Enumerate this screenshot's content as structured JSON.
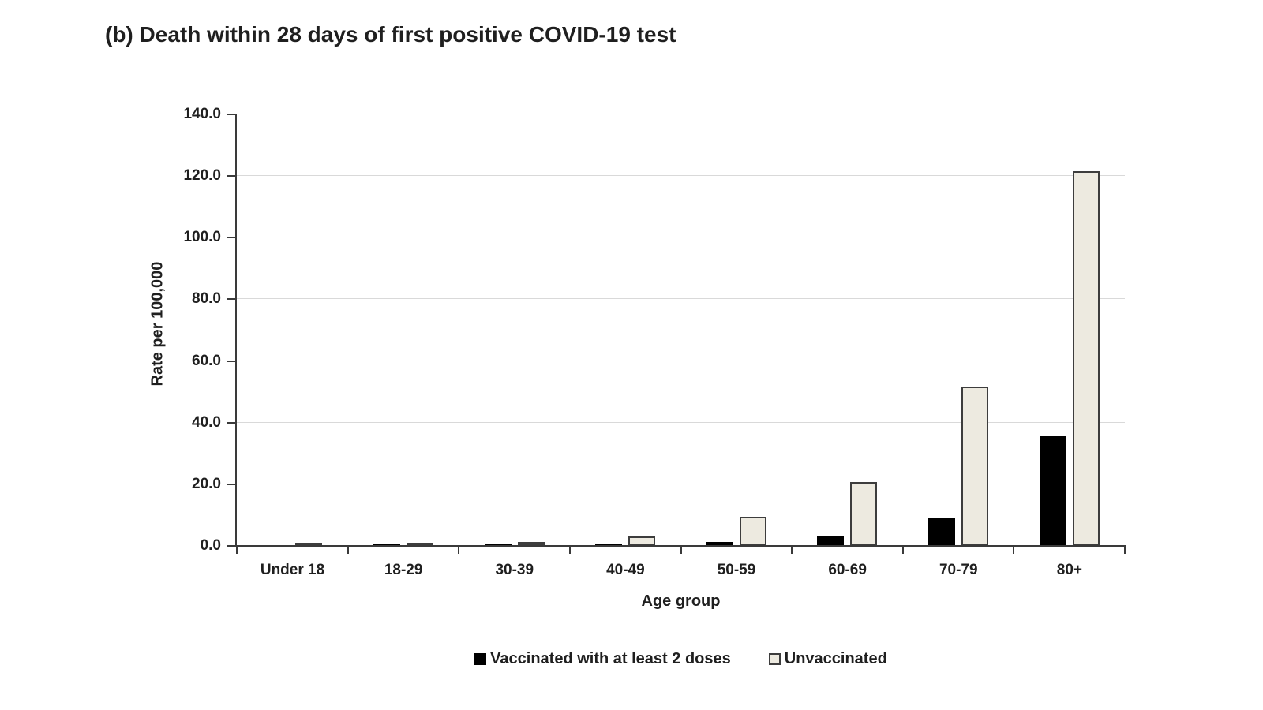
{
  "page": {
    "background": "#ffffff"
  },
  "chart_data": {
    "type": "bar",
    "title": "(b) Death within 28 days of first positive COVID-19 test",
    "xlabel": "Age group",
    "ylabel": "Rate per 100,000",
    "categories": [
      "Under 18",
      "18-29",
      "30-39",
      "40-49",
      "50-59",
      "60-69",
      "70-79",
      "80+"
    ],
    "series": [
      {
        "name": "Vaccinated with at least 2 doses",
        "color": "#000000",
        "border": "#000000",
        "values": [
          0.0,
          0.1,
          0.4,
          0.8,
          1.3,
          3.2,
          9.2,
          35.5
        ]
      },
      {
        "name": "Unvaccinated",
        "color": "#edeae0",
        "border": "#3d3d3d",
        "values": [
          0.1,
          0.7,
          1.4,
          3.2,
          9.6,
          20.8,
          51.7,
          121.5
        ]
      }
    ],
    "ylim": [
      0,
      140
    ],
    "ytick_step": 20,
    "y_tick_labels": [
      "0.0",
      "20.0",
      "40.0",
      "60.0",
      "80.0",
      "100.0",
      "120.0",
      "140.0"
    ],
    "grid": "horizontal",
    "legend_position": "bottom",
    "colors": {
      "gridline": "#d9d9d9",
      "axis": "#3a3a3a",
      "text": "#1f1f1f"
    }
  }
}
